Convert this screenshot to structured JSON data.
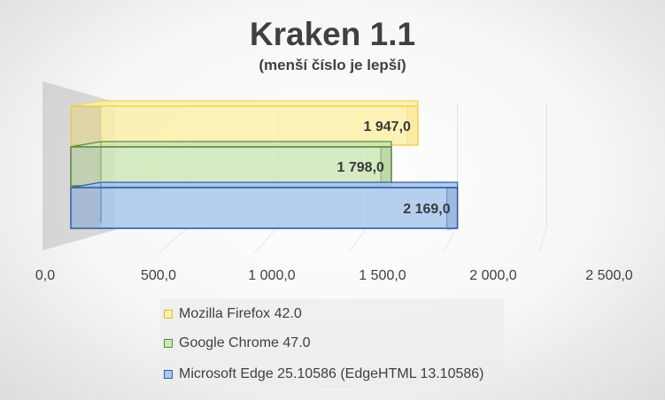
{
  "chart_data": {
    "type": "bar",
    "orientation": "horizontal",
    "title": "Kraken 1.1",
    "subtitle": "(menší číslo je lepší)",
    "xlim": [
      0,
      2500
    ],
    "ticks": [
      "0,0",
      "500,0",
      "1 000,0",
      "1 500,0",
      "2 000,0",
      "2 500,0"
    ],
    "grid": true,
    "legend_position": "bottom",
    "series": [
      {
        "name": "Mozilla Firefox 42.0",
        "value": 1947.0,
        "label": "1 947,0",
        "color": "#f2d45c",
        "fill": "#fbf0a8"
      },
      {
        "name": "Google Chrome 47.0",
        "value": 1798.0,
        "label": "1 798,0",
        "color": "#5a8a3c",
        "fill": "#cfe6b8"
      },
      {
        "name": "Microsoft Edge 25.10586 (EdgeHTML 13.10586)",
        "value": 2169.0,
        "label": "2 169,0",
        "color": "#2f5fa3",
        "fill": "#a9c7ec"
      }
    ]
  }
}
